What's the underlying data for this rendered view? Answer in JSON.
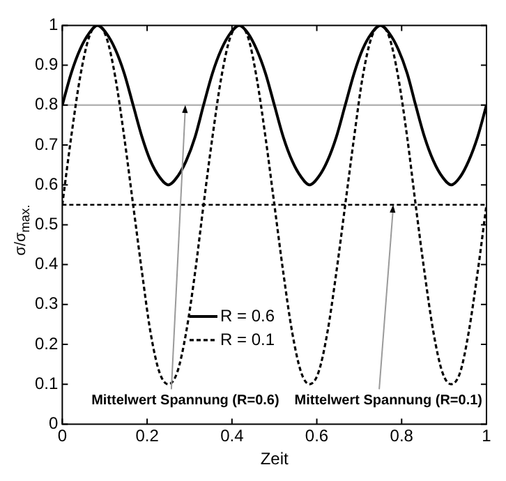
{
  "chart_data": {
    "type": "line",
    "xlabel": "Zeit",
    "ylabel": "σ/σ$_{max.}$",
    "x": [
      0,
      0.021,
      0.042,
      0.063,
      0.083,
      0.104,
      0.125,
      0.146,
      0.167,
      0.188,
      0.208,
      0.229,
      0.25,
      0.271,
      0.292,
      0.313,
      0.333,
      0.354,
      0.375,
      0.396,
      0.417,
      0.438,
      0.458,
      0.479,
      0.5,
      0.521,
      0.542,
      0.563,
      0.583,
      0.604,
      0.625,
      0.646,
      0.667,
      0.688,
      0.708,
      0.729,
      0.75,
      0.771,
      0.792,
      0.813,
      0.833,
      0.854,
      0.875,
      0.896,
      0.917,
      0.938,
      0.958,
      0.979,
      1
    ],
    "series": [
      {
        "name": "R = 0.6",
        "color": "#000000",
        "line_style": "solid",
        "values": [
          0.8,
          0.88,
          0.94,
          0.98,
          1,
          0.98,
          0.94,
          0.88,
          0.8,
          0.72,
          0.66,
          0.62,
          0.6,
          0.62,
          0.66,
          0.72,
          0.8,
          0.88,
          0.94,
          0.98,
          1,
          0.98,
          0.94,
          0.88,
          0.8,
          0.72,
          0.66,
          0.62,
          0.6,
          0.62,
          0.66,
          0.72,
          0.8,
          0.88,
          0.94,
          0.98,
          1,
          0.98,
          0.94,
          0.88,
          0.8,
          0.72,
          0.66,
          0.62,
          0.6,
          0.62,
          0.66,
          0.72,
          0.8
        ]
      },
      {
        "name": "R = 0.1",
        "color": "#000000",
        "line_style": "dashed",
        "values": [
          0.55,
          0.72,
          0.87,
          0.97,
          1,
          0.97,
          0.87,
          0.72,
          0.55,
          0.38,
          0.23,
          0.13,
          0.1,
          0.13,
          0.23,
          0.38,
          0.55,
          0.72,
          0.87,
          0.97,
          1,
          0.97,
          0.87,
          0.72,
          0.55,
          0.38,
          0.23,
          0.13,
          0.1,
          0.13,
          0.23,
          0.38,
          0.55,
          0.72,
          0.87,
          0.97,
          1,
          0.97,
          0.87,
          0.72,
          0.55,
          0.38,
          0.23,
          0.13,
          0.1,
          0.13,
          0.23,
          0.38,
          0.55
        ]
      }
    ],
    "ref_lines": [
      {
        "axis": "y",
        "value": 0.8,
        "color": "#b4b4b4",
        "line_style": "solid"
      },
      {
        "axis": "y",
        "value": 0.55,
        "color": "#000000",
        "line_style": "dashed"
      }
    ],
    "annotations": [
      {
        "text": "Mittelwert Spannung (R=0.6)",
        "x": 0.29,
        "y": 0.8
      },
      {
        "text": "Mittelwert Spannung (R=0.1)",
        "x": 0.78,
        "y": 0.55
      }
    ],
    "xlim": [
      0,
      1
    ],
    "xticks": [
      0,
      0.2,
      0.4,
      0.6,
      0.8,
      1
    ],
    "ylim": [
      0,
      1
    ],
    "yticks": [
      0,
      0.1,
      0.2,
      0.3,
      0.4,
      0.5,
      0.6,
      0.7,
      0.8,
      0.9,
      1
    ],
    "grid": false,
    "legend": "bottom left",
    "marker": "none"
  }
}
